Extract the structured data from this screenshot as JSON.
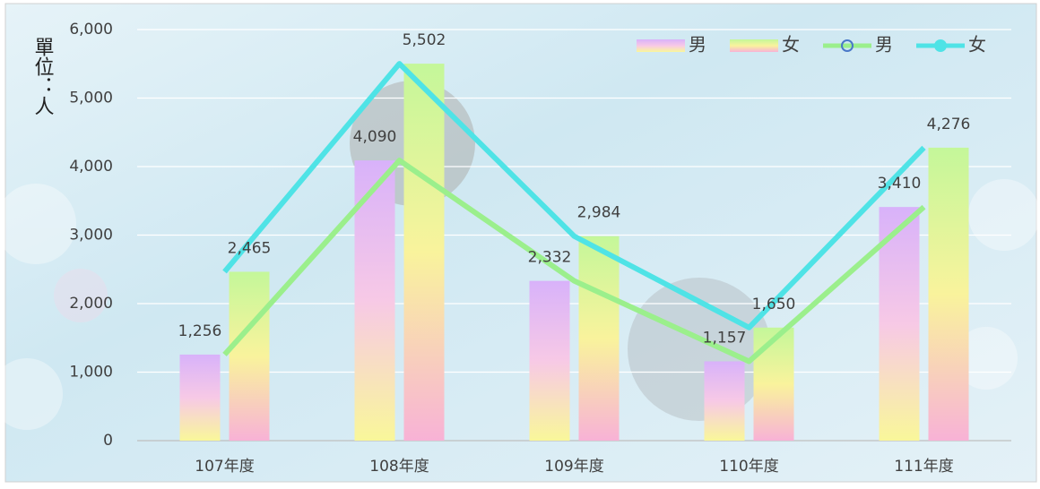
{
  "chart_data": {
    "type": "bar",
    "y_label": "單位：人",
    "categories": [
      "107年度",
      "108年度",
      "109年度",
      "110年度",
      "111年度"
    ],
    "series": [
      {
        "name": "男",
        "type": "bar",
        "colors": [
          "#d8b2fa",
          "#f7c9e6",
          "#f9f79a"
        ],
        "values": [
          1256,
          4090,
          2332,
          1157,
          3410
        ],
        "value_labels": [
          "1,256",
          "4,090",
          "2,332",
          "1,157",
          "3,410"
        ]
      },
      {
        "name": "女",
        "type": "bar",
        "colors": [
          "#c4f79a",
          "#f9f39c",
          "#f8b2d6"
        ],
        "values": [
          2465,
          5502,
          2984,
          1650,
          4276
        ],
        "value_labels": [
          "2,465",
          "5,502",
          "2,984",
          "1,650",
          "4,276"
        ]
      },
      {
        "name": "男",
        "type": "line",
        "color": "#9bef8c",
        "values": [
          1256,
          4090,
          2332,
          1157,
          3410
        ]
      },
      {
        "name": "女",
        "type": "line",
        "color": "#4fe3e6",
        "values": [
          2465,
          5502,
          2984,
          1650,
          4276
        ]
      }
    ],
    "ylim": [
      0,
      6000
    ],
    "yticks": [
      0,
      {
        "value": 1000,
        "label": "1,000"
      },
      {
        "value": 2000,
        "label": "2,000"
      },
      {
        "value": 3000,
        "label": "3,000"
      },
      {
        "value": 4000,
        "label": "4,000"
      },
      {
        "value": 5000,
        "label": "5,000"
      },
      {
        "value": 6000,
        "label": "6,000"
      }
    ],
    "grid": true,
    "legend": "top-right"
  }
}
